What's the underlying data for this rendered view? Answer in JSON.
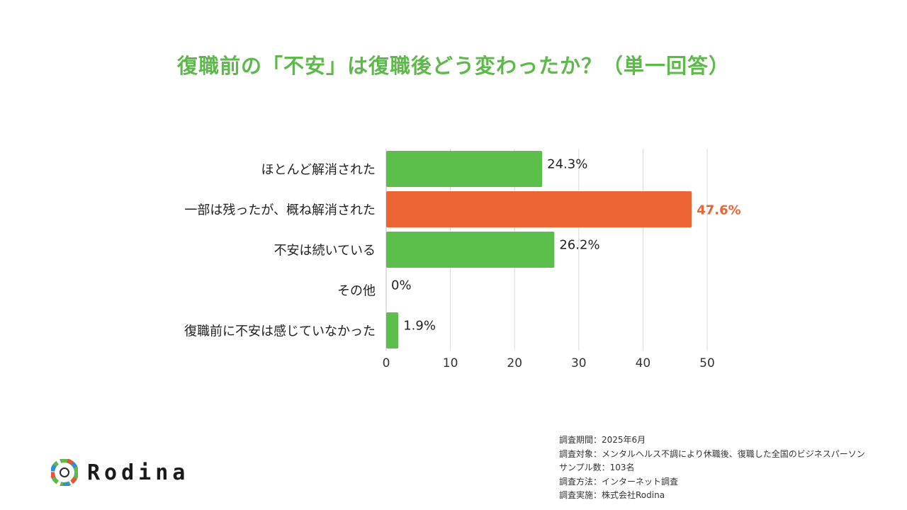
{
  "title": "復職前の「不安」は復職後どう変わったか？（単一回答）",
  "colors": {
    "title": "#5cb94a",
    "bar_default": "#5cbf4b",
    "bar_highlight": "#ea6434",
    "highlight_label": "#ea6434",
    "grid": "#d9d9d9"
  },
  "chart_data": {
    "type": "bar",
    "orientation": "horizontal",
    "categories": [
      "ほとんど解消された",
      "一部は残ったが、概ね解消された",
      "不安は続いている",
      "その他",
      "復職前に不安は感じていなかった"
    ],
    "values": [
      24.3,
      47.6,
      26.2,
      0,
      1.9
    ],
    "value_labels": [
      "24.3%",
      "47.6%",
      "26.2%",
      "0%",
      "1.9%"
    ],
    "highlight_index": 1,
    "xlim": [
      0,
      50
    ],
    "xticks": [
      0,
      10,
      20,
      30,
      40,
      50
    ],
    "grid": true,
    "legend": "none",
    "title": "復職前の「不安」は復職後どう変わったか？（単一回答）"
  },
  "notes": [
    "調査期間：2025年6月",
    "調査対象：メンタルヘルス不調により休職後、復職した全国のビジネスパーソン",
    "サンプル数：103名",
    "調査方法：インターネット調査",
    "調査実施：株式会社Rodina"
  ],
  "logo": {
    "text": "Rodina",
    "icon": "rodina-logo-icon"
  }
}
